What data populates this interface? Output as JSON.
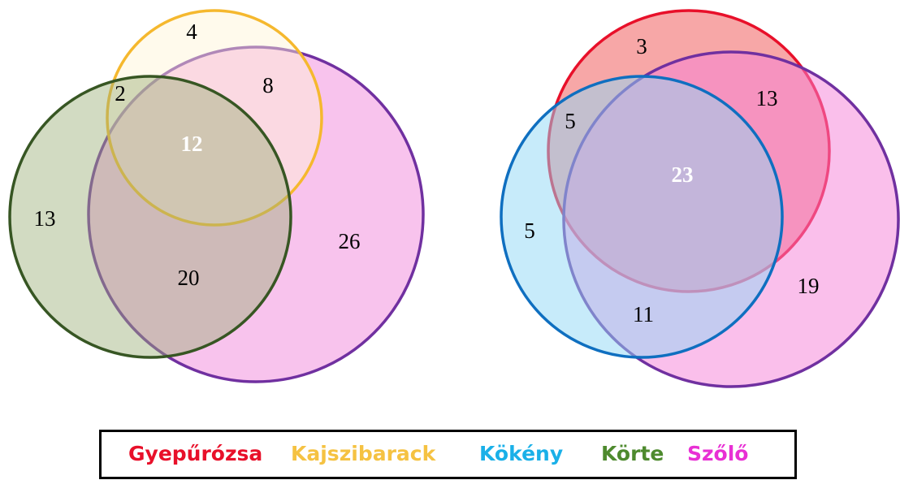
{
  "venns": [
    {
      "regions": [
        4,
        8,
        2,
        12,
        13,
        26,
        20
      ]
    },
    {
      "regions": [
        3,
        13,
        5,
        23,
        5,
        19,
        11
      ]
    }
  ],
  "legend": [
    "Gyepűrózsa",
    "Kajszibarack",
    "Kökény",
    "Körte",
    "Szőlő"
  ]
}
